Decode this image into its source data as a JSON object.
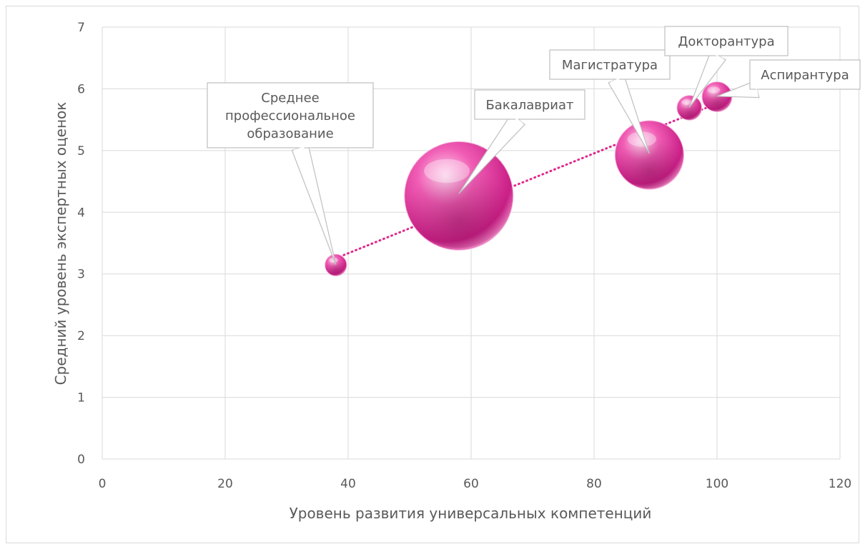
{
  "chart_data": {
    "type": "bubble",
    "xlabel": "Уровень развития универсальных компетенций",
    "ylabel": "Средний уровень экспертных оценок",
    "xlim": [
      0,
      120
    ],
    "ylim": [
      0,
      7
    ],
    "x_ticks": [
      "0",
      "20",
      "40",
      "60",
      "80",
      "100",
      "120"
    ],
    "y_ticks": [
      "0",
      "1",
      "2",
      "3",
      "4",
      "5",
      "6",
      "7"
    ],
    "grid": true,
    "trendline": "linear",
    "colors": {
      "bubble": "#e8409a",
      "trend": "#e0268a"
    },
    "points": [
      {
        "label_lines": [
          "Среднее",
          "профессиональное",
          "образование"
        ],
        "x": 38,
        "y": 3.15,
        "size": 1
      },
      {
        "label_lines": [
          "Бакалавриат"
        ],
        "x": 58,
        "y": 4.3,
        "size": 25
      },
      {
        "label_lines": [
          "Магистратура"
        ],
        "x": 89,
        "y": 4.95,
        "size": 10
      },
      {
        "label_lines": [
          "Докторантура"
        ],
        "x": 95.5,
        "y": 5.7,
        "size": 1.3
      },
      {
        "label_lines": [
          "Аспирантура"
        ],
        "x": 100,
        "y": 5.88,
        "size": 1.9
      }
    ]
  }
}
